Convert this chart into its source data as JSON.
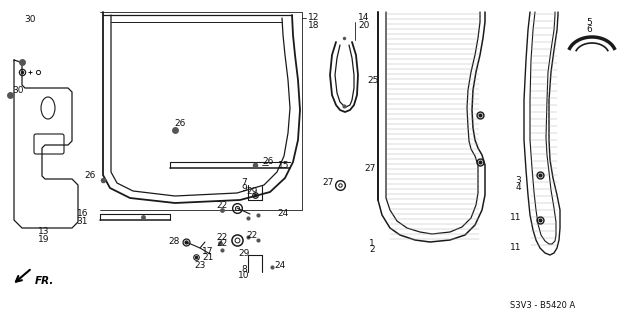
{
  "bg_color": "#ffffff",
  "diagram_code": "S3V3 - B5420 A",
  "line_color": "#1a1a1a",
  "text_color": "#111111",
  "font_size": 6.5
}
